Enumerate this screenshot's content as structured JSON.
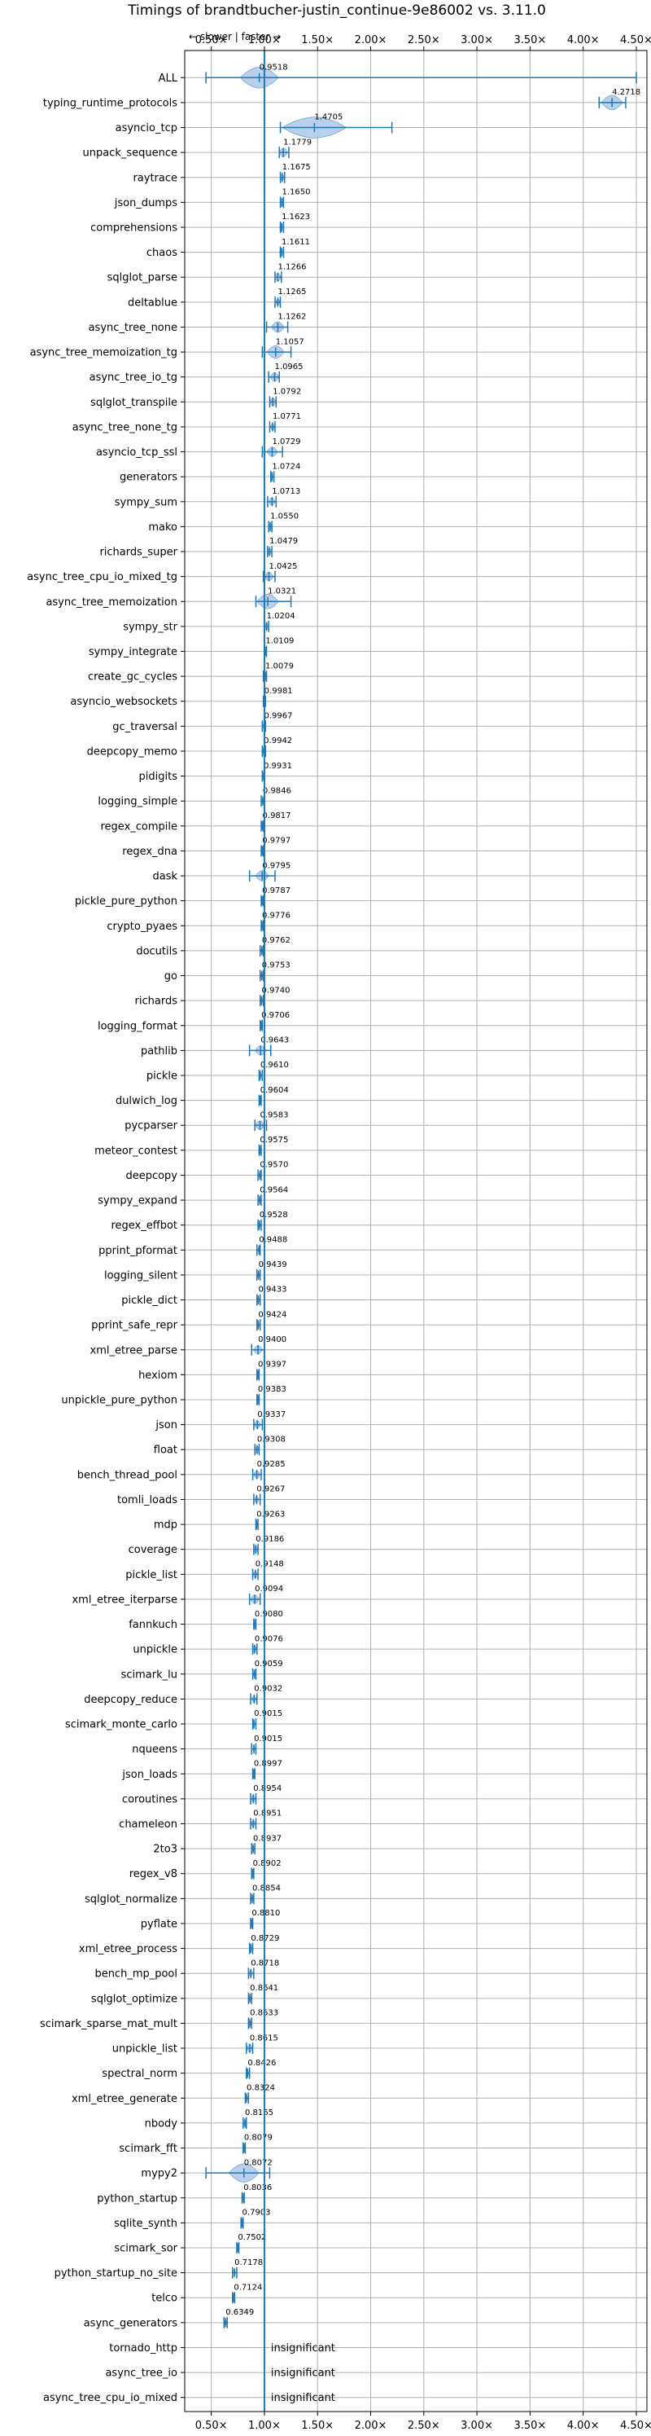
{
  "chart_data": {
    "type": "violin",
    "title": "Timings of brandtbucher-justin_continue-9e86002 vs. 3.11.0",
    "direction_note": "← slower | faster →",
    "xlim": [
      0.25,
      4.6
    ],
    "xticks": [
      0.5,
      1.0,
      1.5,
      2.0,
      2.5,
      3.0,
      3.5,
      4.0,
      4.5
    ],
    "xtick_labels": [
      "0.50×",
      "1.00×",
      "1.50×",
      "2.00×",
      "2.50×",
      "3.00×",
      "3.50×",
      "4.00×",
      "4.50×"
    ],
    "reference_line": 1.0,
    "grid": true,
    "colors": {
      "violin": "#1f77b4",
      "violin_fill": "#aec7e8",
      "grid": "#b0b0b0",
      "axis": "#000000"
    },
    "insignificant_label": "insignificant",
    "benchmarks": [
      {
        "name": "ALL",
        "value": 0.9518,
        "label": "0.9518",
        "min": 0.45,
        "max": 4.5,
        "spread": 0.18
      },
      {
        "name": "typing_runtime_protocols",
        "value": 4.2718,
        "label": "4.2718",
        "min": 4.15,
        "max": 4.4,
        "spread": 0.1
      },
      {
        "name": "asyncio_tcp",
        "value": 1.4705,
        "label": "1.4705",
        "min": 1.15,
        "max": 2.2,
        "spread": 0.3
      },
      {
        "name": "unpack_sequence",
        "value": 1.1779,
        "label": "1.1779",
        "min": 1.14,
        "max": 1.23,
        "spread": 0.04
      },
      {
        "name": "raytrace",
        "value": 1.1675,
        "label": "1.1675",
        "min": 1.15,
        "max": 1.19,
        "spread": 0.02
      },
      {
        "name": "json_dumps",
        "value": 1.165,
        "label": "1.1650",
        "min": 1.15,
        "max": 1.18,
        "spread": 0.02
      },
      {
        "name": "comprehensions",
        "value": 1.1623,
        "label": "1.1623",
        "min": 1.15,
        "max": 1.18,
        "spread": 0.02
      },
      {
        "name": "chaos",
        "value": 1.1611,
        "label": "1.1611",
        "min": 1.15,
        "max": 1.18,
        "spread": 0.02
      },
      {
        "name": "sqlglot_parse",
        "value": 1.1266,
        "label": "1.1266",
        "min": 1.1,
        "max": 1.16,
        "spread": 0.03
      },
      {
        "name": "deltablue",
        "value": 1.1265,
        "label": "1.1265",
        "min": 1.1,
        "max": 1.15,
        "spread": 0.02
      },
      {
        "name": "async_tree_none",
        "value": 1.1262,
        "label": "1.1262",
        "min": 1.02,
        "max": 1.22,
        "spread": 0.06
      },
      {
        "name": "async_tree_memoization_tg",
        "value": 1.1057,
        "label": "1.1057",
        "min": 0.98,
        "max": 1.25,
        "spread": 0.08
      },
      {
        "name": "async_tree_io_tg",
        "value": 1.0965,
        "label": "1.0965",
        "min": 1.04,
        "max": 1.14,
        "spread": 0.04
      },
      {
        "name": "sqlglot_transpile",
        "value": 1.0792,
        "label": "1.0792",
        "min": 1.05,
        "max": 1.11,
        "spread": 0.03
      },
      {
        "name": "async_tree_none_tg",
        "value": 1.0771,
        "label": "1.0771",
        "min": 1.05,
        "max": 1.1,
        "spread": 0.02
      },
      {
        "name": "asyncio_tcp_ssl",
        "value": 1.0729,
        "label": "1.0729",
        "min": 0.98,
        "max": 1.17,
        "spread": 0.05
      },
      {
        "name": "generators",
        "value": 1.0724,
        "label": "1.0724",
        "min": 1.06,
        "max": 1.09,
        "spread": 0.01
      },
      {
        "name": "sympy_sum",
        "value": 1.0713,
        "label": "1.0713",
        "min": 1.03,
        "max": 1.11,
        "spread": 0.03
      },
      {
        "name": "mako",
        "value": 1.055,
        "label": "1.0550",
        "min": 1.04,
        "max": 1.07,
        "spread": 0.02
      },
      {
        "name": "richards_super",
        "value": 1.0479,
        "label": "1.0479",
        "min": 1.03,
        "max": 1.07,
        "spread": 0.02
      },
      {
        "name": "async_tree_cpu_io_mixed_tg",
        "value": 1.0425,
        "label": "1.0425",
        "min": 0.99,
        "max": 1.1,
        "spread": 0.04
      },
      {
        "name": "async_tree_memoization",
        "value": 1.0321,
        "label": "1.0321",
        "min": 0.92,
        "max": 1.25,
        "spread": 0.1
      },
      {
        "name": "sympy_str",
        "value": 1.0204,
        "label": "1.0204",
        "min": 1.0,
        "max": 1.04,
        "spread": 0.02
      },
      {
        "name": "sympy_integrate",
        "value": 1.0109,
        "label": "1.0109",
        "min": 1.0,
        "max": 1.02,
        "spread": 0.01
      },
      {
        "name": "create_gc_cycles",
        "value": 1.0079,
        "label": "1.0079",
        "min": 0.99,
        "max": 1.02,
        "spread": 0.01
      },
      {
        "name": "asyncio_websockets",
        "value": 0.9981,
        "label": "0.9981",
        "min": 0.99,
        "max": 1.01,
        "spread": 0.01
      },
      {
        "name": "gc_traversal",
        "value": 0.9967,
        "label": "0.9967",
        "min": 0.98,
        "max": 1.01,
        "spread": 0.01
      },
      {
        "name": "deepcopy_memo",
        "value": 0.9942,
        "label": "0.9942",
        "min": 0.98,
        "max": 1.01,
        "spread": 0.01
      },
      {
        "name": "pidigits",
        "value": 0.9931,
        "label": "0.9931",
        "min": 0.98,
        "max": 1.0,
        "spread": 0.01
      },
      {
        "name": "logging_simple",
        "value": 0.9846,
        "label": "0.9846",
        "min": 0.97,
        "max": 1.0,
        "spread": 0.01
      },
      {
        "name": "regex_compile",
        "value": 0.9817,
        "label": "0.9817",
        "min": 0.97,
        "max": 0.99,
        "spread": 0.01
      },
      {
        "name": "regex_dna",
        "value": 0.9797,
        "label": "0.9797",
        "min": 0.97,
        "max": 0.99,
        "spread": 0.01
      },
      {
        "name": "dask",
        "value": 0.9795,
        "label": "0.9795",
        "min": 0.86,
        "max": 1.1,
        "spread": 0.06
      },
      {
        "name": "pickle_pure_python",
        "value": 0.9787,
        "label": "0.9787",
        "min": 0.97,
        "max": 0.99,
        "spread": 0.01
      },
      {
        "name": "crypto_pyaes",
        "value": 0.9776,
        "label": "0.9776",
        "min": 0.97,
        "max": 0.99,
        "spread": 0.01
      },
      {
        "name": "docutils",
        "value": 0.9762,
        "label": "0.9762",
        "min": 0.96,
        "max": 0.99,
        "spread": 0.01
      },
      {
        "name": "go",
        "value": 0.9753,
        "label": "0.9753",
        "min": 0.96,
        "max": 0.99,
        "spread": 0.01
      },
      {
        "name": "richards",
        "value": 0.974,
        "label": "0.9740",
        "min": 0.96,
        "max": 0.99,
        "spread": 0.01
      },
      {
        "name": "logging_format",
        "value": 0.9706,
        "label": "0.9706",
        "min": 0.96,
        "max": 0.98,
        "spread": 0.01
      },
      {
        "name": "pathlib",
        "value": 0.9643,
        "label": "0.9643",
        "min": 0.86,
        "max": 1.06,
        "spread": 0.05
      },
      {
        "name": "pickle",
        "value": 0.961,
        "label": "0.9610",
        "min": 0.95,
        "max": 0.98,
        "spread": 0.01
      },
      {
        "name": "dulwich_log",
        "value": 0.9604,
        "label": "0.9604",
        "min": 0.95,
        "max": 0.97,
        "spread": 0.01
      },
      {
        "name": "pycparser",
        "value": 0.9583,
        "label": "0.9583",
        "min": 0.91,
        "max": 1.02,
        "spread": 0.04
      },
      {
        "name": "meteor_contest",
        "value": 0.9575,
        "label": "0.9575",
        "min": 0.95,
        "max": 0.97,
        "spread": 0.01
      },
      {
        "name": "deepcopy",
        "value": 0.957,
        "label": "0.9570",
        "min": 0.94,
        "max": 0.97,
        "spread": 0.01
      },
      {
        "name": "sympy_expand",
        "value": 0.9564,
        "label": "0.9564",
        "min": 0.94,
        "max": 0.97,
        "spread": 0.01
      },
      {
        "name": "regex_effbot",
        "value": 0.9528,
        "label": "0.9528",
        "min": 0.94,
        "max": 0.97,
        "spread": 0.01
      },
      {
        "name": "pprint_pformat",
        "value": 0.9488,
        "label": "0.9488",
        "min": 0.93,
        "max": 0.96,
        "spread": 0.01
      },
      {
        "name": "logging_silent",
        "value": 0.9439,
        "label": "0.9439",
        "min": 0.93,
        "max": 0.96,
        "spread": 0.01
      },
      {
        "name": "pickle_dict",
        "value": 0.9433,
        "label": "0.9433",
        "min": 0.93,
        "max": 0.96,
        "spread": 0.01
      },
      {
        "name": "pprint_safe_repr",
        "value": 0.9424,
        "label": "0.9424",
        "min": 0.93,
        "max": 0.96,
        "spread": 0.01
      },
      {
        "name": "xml_etree_parse",
        "value": 0.94,
        "label": "0.9400",
        "min": 0.88,
        "max": 1.0,
        "spread": 0.04
      },
      {
        "name": "hexiom",
        "value": 0.9397,
        "label": "0.9397",
        "min": 0.93,
        "max": 0.95,
        "spread": 0.01
      },
      {
        "name": "unpickle_pure_python",
        "value": 0.9383,
        "label": "0.9383",
        "min": 0.93,
        "max": 0.95,
        "spread": 0.01
      },
      {
        "name": "json",
        "value": 0.9337,
        "label": "0.9337",
        "min": 0.9,
        "max": 0.98,
        "spread": 0.03
      },
      {
        "name": "float",
        "value": 0.9308,
        "label": "0.9308",
        "min": 0.91,
        "max": 0.95,
        "spread": 0.02
      },
      {
        "name": "bench_thread_pool",
        "value": 0.9285,
        "label": "0.9285",
        "min": 0.89,
        "max": 0.97,
        "spread": 0.03
      },
      {
        "name": "tomli_loads",
        "value": 0.9267,
        "label": "0.9267",
        "min": 0.9,
        "max": 0.96,
        "spread": 0.02
      },
      {
        "name": "mdp",
        "value": 0.9263,
        "label": "0.9263",
        "min": 0.92,
        "max": 0.94,
        "spread": 0.01
      },
      {
        "name": "coverage",
        "value": 0.9186,
        "label": "0.9186",
        "min": 0.9,
        "max": 0.94,
        "spread": 0.02
      },
      {
        "name": "pickle_list",
        "value": 0.9148,
        "label": "0.9148",
        "min": 0.89,
        "max": 0.94,
        "spread": 0.02
      },
      {
        "name": "xml_etree_iterparse",
        "value": 0.9094,
        "label": "0.9094",
        "min": 0.86,
        "max": 0.96,
        "spread": 0.04
      },
      {
        "name": "fannkuch",
        "value": 0.908,
        "label": "0.9080",
        "min": 0.9,
        "max": 0.92,
        "spread": 0.01
      },
      {
        "name": "unpickle",
        "value": 0.9076,
        "label": "0.9076",
        "min": 0.89,
        "max": 0.93,
        "spread": 0.02
      },
      {
        "name": "scimark_lu",
        "value": 0.9059,
        "label": "0.9059",
        "min": 0.89,
        "max": 0.92,
        "spread": 0.01
      },
      {
        "name": "deepcopy_reduce",
        "value": 0.9032,
        "label": "0.9032",
        "min": 0.87,
        "max": 0.93,
        "spread": 0.02
      },
      {
        "name": "scimark_monte_carlo",
        "value": 0.9015,
        "label": "0.9015",
        "min": 0.89,
        "max": 0.92,
        "spread": 0.01
      },
      {
        "name": "nqueens",
        "value": 0.9015,
        "label": "0.9015",
        "min": 0.88,
        "max": 0.92,
        "spread": 0.01
      },
      {
        "name": "json_loads",
        "value": 0.8997,
        "label": "0.8997",
        "min": 0.89,
        "max": 0.91,
        "spread": 0.01
      },
      {
        "name": "coroutines",
        "value": 0.8954,
        "label": "0.8954",
        "min": 0.87,
        "max": 0.92,
        "spread": 0.02
      },
      {
        "name": "chameleon",
        "value": 0.8951,
        "label": "0.8951",
        "min": 0.87,
        "max": 0.92,
        "spread": 0.02
      },
      {
        "name": "2to3",
        "value": 0.8937,
        "label": "0.8937",
        "min": 0.88,
        "max": 0.91,
        "spread": 0.01
      },
      {
        "name": "regex_v8",
        "value": 0.8902,
        "label": "0.8902",
        "min": 0.88,
        "max": 0.9,
        "spread": 0.01
      },
      {
        "name": "sqlglot_normalize",
        "value": 0.8854,
        "label": "0.8854",
        "min": 0.87,
        "max": 0.9,
        "spread": 0.01
      },
      {
        "name": "pyflate",
        "value": 0.881,
        "label": "0.8810",
        "min": 0.87,
        "max": 0.89,
        "spread": 0.01
      },
      {
        "name": "xml_etree_process",
        "value": 0.8729,
        "label": "0.8729",
        "min": 0.86,
        "max": 0.89,
        "spread": 0.01
      },
      {
        "name": "bench_mp_pool",
        "value": 0.8718,
        "label": "0.8718",
        "min": 0.85,
        "max": 0.9,
        "spread": 0.02
      },
      {
        "name": "sqlglot_optimize",
        "value": 0.8641,
        "label": "0.8641",
        "min": 0.85,
        "max": 0.88,
        "spread": 0.01
      },
      {
        "name": "scimark_sparse_mat_mult",
        "value": 0.8633,
        "label": "0.8633",
        "min": 0.85,
        "max": 0.88,
        "spread": 0.01
      },
      {
        "name": "unpickle_list",
        "value": 0.8615,
        "label": "0.8615",
        "min": 0.83,
        "max": 0.89,
        "spread": 0.03
      },
      {
        "name": "spectral_norm",
        "value": 0.8426,
        "label": "0.8426",
        "min": 0.83,
        "max": 0.86,
        "spread": 0.01
      },
      {
        "name": "xml_etree_generate",
        "value": 0.8324,
        "label": "0.8324",
        "min": 0.82,
        "max": 0.85,
        "spread": 0.01
      },
      {
        "name": "nbody",
        "value": 0.8165,
        "label": "0.8165",
        "min": 0.8,
        "max": 0.83,
        "spread": 0.01
      },
      {
        "name": "scimark_fft",
        "value": 0.8079,
        "label": "0.8079",
        "min": 0.8,
        "max": 0.82,
        "spread": 0.01
      },
      {
        "name": "mypy2",
        "value": 0.8072,
        "label": "0.8072",
        "min": 0.45,
        "max": 1.05,
        "spread": 0.14
      },
      {
        "name": "python_startup",
        "value": 0.8036,
        "label": "0.8036",
        "min": 0.79,
        "max": 0.81,
        "spread": 0.01
      },
      {
        "name": "sqlite_synth",
        "value": 0.7903,
        "label": "0.7903",
        "min": 0.78,
        "max": 0.8,
        "spread": 0.01
      },
      {
        "name": "scimark_sor",
        "value": 0.7502,
        "label": "0.7502",
        "min": 0.74,
        "max": 0.76,
        "spread": 0.01
      },
      {
        "name": "python_startup_no_site",
        "value": 0.7178,
        "label": "0.7178",
        "min": 0.7,
        "max": 0.74,
        "spread": 0.01
      },
      {
        "name": "telco",
        "value": 0.7124,
        "label": "0.7124",
        "min": 0.7,
        "max": 0.72,
        "spread": 0.01
      },
      {
        "name": "async_generators",
        "value": 0.6349,
        "label": "0.6349",
        "min": 0.62,
        "max": 0.65,
        "spread": 0.01
      },
      {
        "name": "tornado_http",
        "value": null,
        "label": "",
        "min": null,
        "max": null,
        "spread": 0
      },
      {
        "name": "async_tree_io",
        "value": null,
        "label": "",
        "min": null,
        "max": null,
        "spread": 0
      },
      {
        "name": "async_tree_cpu_io_mixed",
        "value": null,
        "label": "",
        "min": null,
        "max": null,
        "spread": 0
      }
    ]
  }
}
